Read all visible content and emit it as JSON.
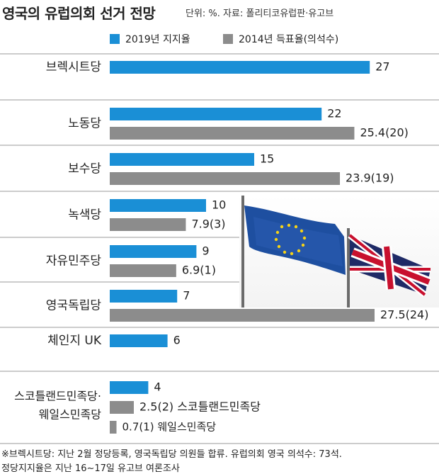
{
  "title": "영국의 유럽의회 선거 전망",
  "subtitle": "단위: %. 자료: 폴리티코유럽판·유고브",
  "legend": {
    "series1": "2019년 지지율",
    "series2": "2014년 득표율(의석수)"
  },
  "colors": {
    "series1": "#1a8fd6",
    "series2": "#8c8c8c",
    "divider": "#999999"
  },
  "chart_data": {
    "type": "bar",
    "orientation": "horizontal",
    "title": "영국의 유럽의회 선거 전망",
    "categories": [
      "브렉시트당",
      "노동당",
      "보수당",
      "녹색당",
      "자유민주당",
      "영국독립당",
      "체인지 UK",
      "스코틀랜드민족당·웨일스민족당"
    ],
    "series": [
      {
        "name": "2019년 지지율",
        "values": [
          27,
          22,
          15,
          10,
          9,
          7,
          6,
          4
        ],
        "labels": [
          "27",
          "22",
          "15",
          "10",
          "9",
          "7",
          "6",
          "4"
        ]
      },
      {
        "name": "2014년 득표율(의석수)",
        "values": [
          null,
          25.4,
          23.9,
          7.9,
          6.9,
          27.5,
          null,
          2.5
        ],
        "labels": [
          "",
          "25.4(20)",
          "23.9(19)",
          "7.9(3)",
          "6.9(1)",
          "27.5(24)",
          "",
          "2.5(2) 스코틀랜드민족당"
        ]
      },
      {
        "values": [
          null,
          null,
          null,
          null,
          null,
          null,
          null,
          0.7
        ],
        "labels": [
          "",
          "",
          "",
          "",
          "",
          "",
          "",
          "0.7(1) 웨일스민족당"
        ]
      }
    ]
  },
  "photo": {
    "description_icon": "eu-and-uk-flags-photo"
  },
  "footnotes": [
    "※브렉시트당: 지난 2월 정당등록, 영국독립당 의원들 합류. 유럽의회 영국 의석수: 73석.",
    "정당지지율은 지난 16~17일 유고브 여론조사"
  ]
}
